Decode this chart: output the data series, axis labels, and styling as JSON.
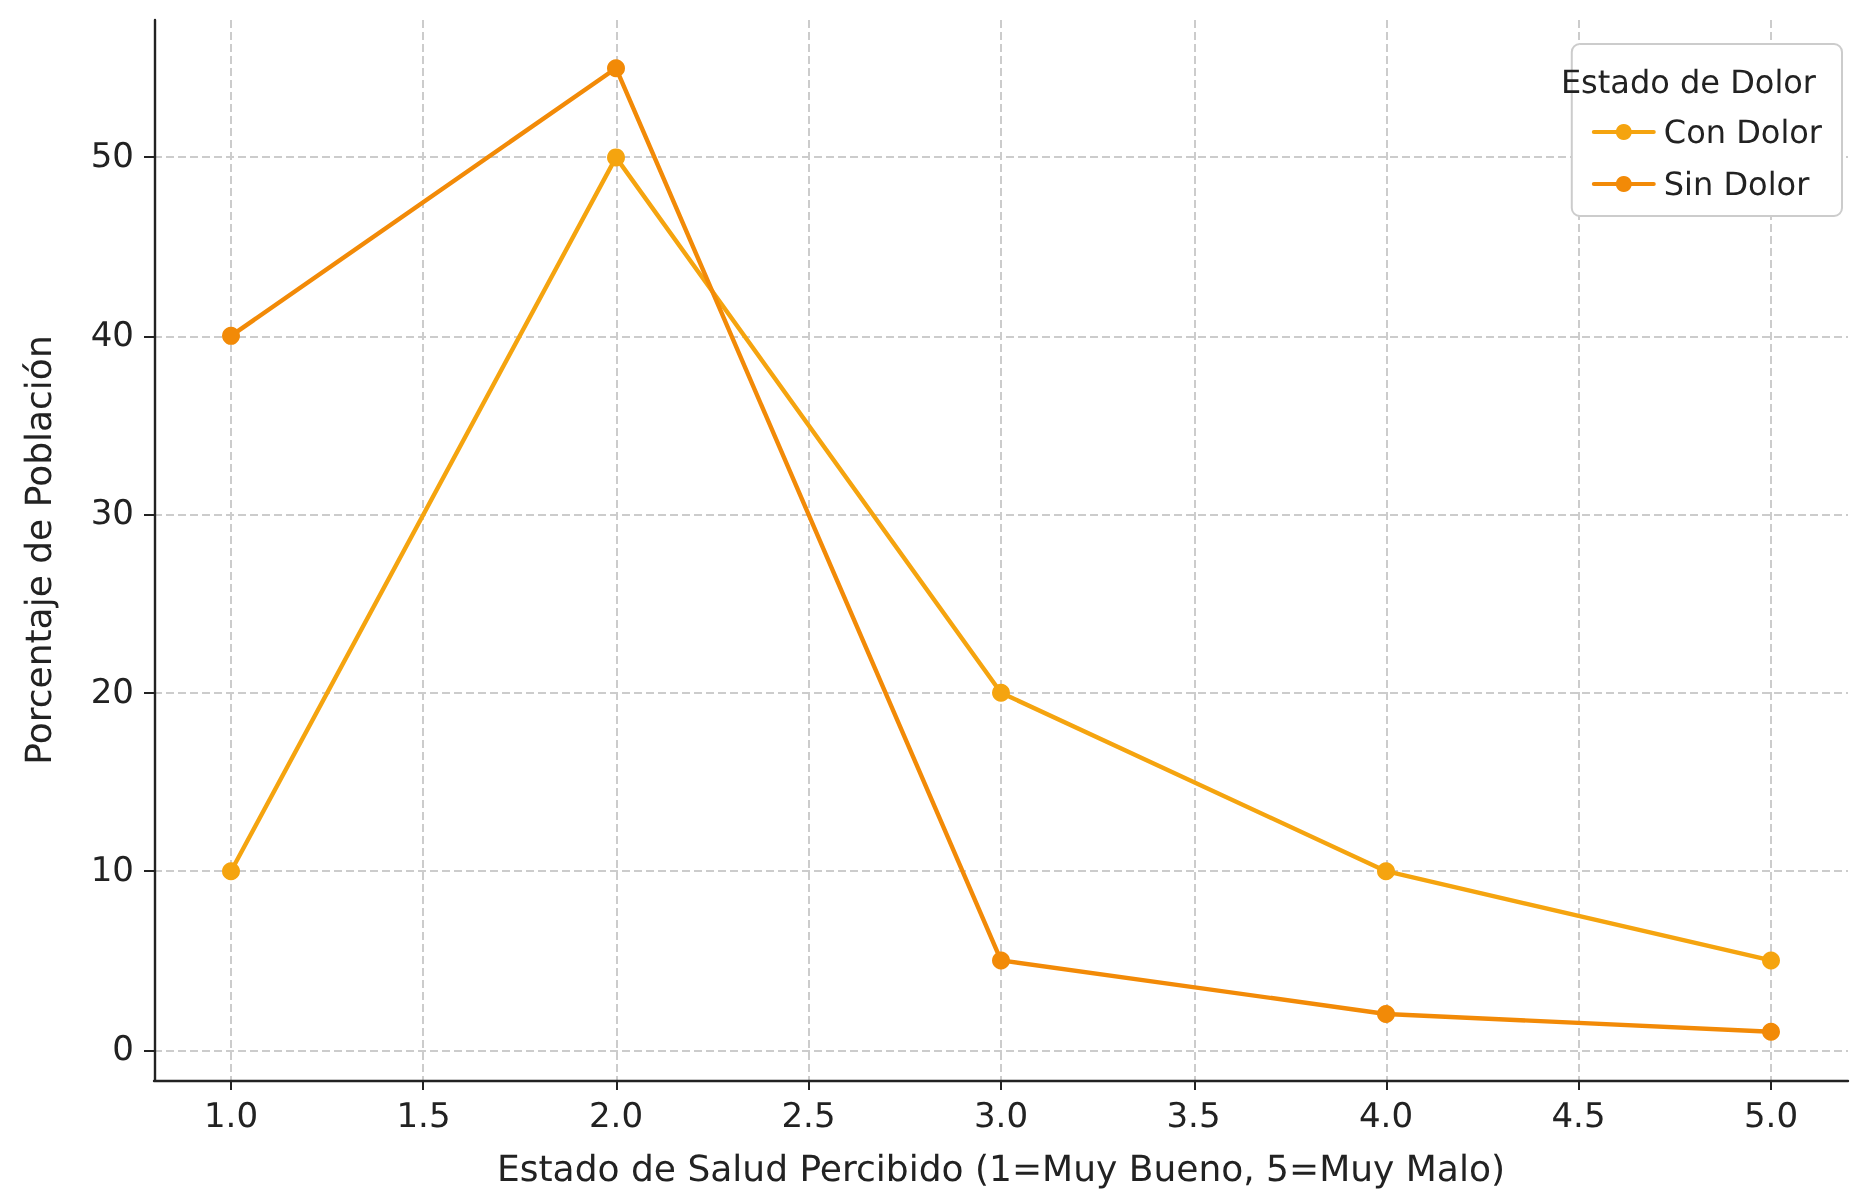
{
  "chart_data": {
    "type": "line",
    "xlabel": "Estado de Salud Percibido (1=Muy Bueno, 5=Muy Malo)",
    "ylabel": "Porcentaje de Población",
    "legend_title": "Estado de Dolor",
    "x": [
      1,
      2,
      3,
      4,
      5
    ],
    "series": [
      {
        "name": "Con Dolor",
        "color": "#f5a40f",
        "values": [
          10,
          50,
          20,
          10,
          5
        ]
      },
      {
        "name": "Sin Dolor",
        "color": "#f28a07",
        "values": [
          40,
          55,
          5,
          2,
          1
        ]
      }
    ],
    "xlim": [
      0.8,
      5.2
    ],
    "xticks": [
      {
        "value": 1,
        "label": "1.0"
      },
      {
        "value": 1.5,
        "label": "1.5"
      },
      {
        "value": 2,
        "label": "2.0"
      },
      {
        "value": 2.5,
        "label": "2.5"
      },
      {
        "value": 3,
        "label": "3.0"
      },
      {
        "value": 3.5,
        "label": "3.5"
      },
      {
        "value": 4,
        "label": "4.0"
      },
      {
        "value": 4.5,
        "label": "4.5"
      },
      {
        "value": 5,
        "label": "5.0"
      }
    ],
    "ylim": [
      -1.7,
      57.7
    ],
    "yticks": [
      0,
      10,
      20,
      30,
      40,
      50
    ],
    "grid": true,
    "legend": "top right",
    "marker": "circle",
    "line_style": "solid"
  }
}
